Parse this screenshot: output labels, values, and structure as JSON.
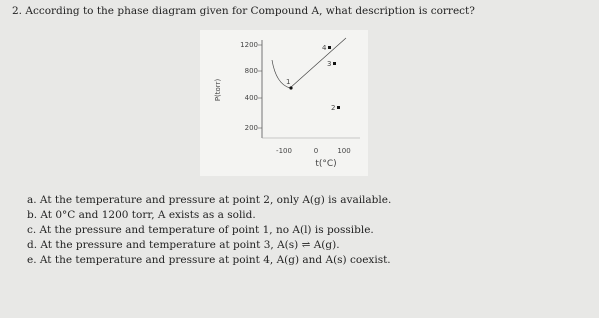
{
  "question": "2. According to the phase diagram given for Compound A, what description is correct?",
  "diagram": {
    "y_label": "P(torr)",
    "x_label": "t(°C)",
    "y_ticks": [
      "1200",
      "800",
      "400",
      "200"
    ],
    "x_ticks": [
      "-100",
      "0",
      "100"
    ],
    "points": [
      "1",
      "2",
      "3",
      "4"
    ]
  },
  "options": [
    "a. At the temperature and pressure at point 2, only A(g) is available.",
    "b. At 0°C and 1200 torr, A exists as a solid.",
    "c. At the pressure and temperature of point 1, no A(l) is possible.",
    "d. At the pressure and temperature at point 3, A(s) ⇌ A(g).",
    "e. At the temperature and pressure at point 4, A(g) and A(s) coexist."
  ]
}
